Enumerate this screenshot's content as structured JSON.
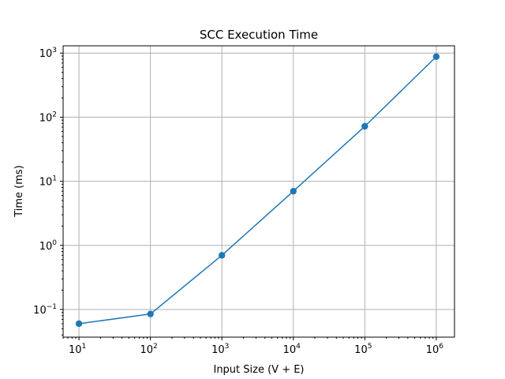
{
  "chart_data": {
    "type": "line",
    "title": "SCC Execution Time",
    "xlabel": "Input Size (V + E)",
    "ylabel": "Time (ms)",
    "xscale": "log",
    "yscale": "log",
    "xlim": [
      6,
      1800000
    ],
    "ylim": [
      0.037,
      1300
    ],
    "grid": true,
    "x_ticks": [
      {
        "base": "10",
        "exp": "1",
        "value": 10
      },
      {
        "base": "10",
        "exp": "2",
        "value": 100
      },
      {
        "base": "10",
        "exp": "3",
        "value": 1000
      },
      {
        "base": "10",
        "exp": "4",
        "value": 10000
      },
      {
        "base": "10",
        "exp": "5",
        "value": 100000
      },
      {
        "base": "10",
        "exp": "6",
        "value": 1000000
      }
    ],
    "y_ticks": [
      {
        "base": "10",
        "exp": "−1",
        "value": 0.1
      },
      {
        "base": "10",
        "exp": "0",
        "value": 1
      },
      {
        "base": "10",
        "exp": "1",
        "value": 10
      },
      {
        "base": "10",
        "exp": "2",
        "value": 100
      },
      {
        "base": "10",
        "exp": "3",
        "value": 1000
      }
    ],
    "series": [
      {
        "color": "#1f77b4",
        "marker": "circle",
        "x": [
          10,
          100,
          1000,
          10000,
          100000,
          1000000
        ],
        "y": [
          0.06,
          0.085,
          0.7,
          7,
          72,
          880
        ]
      }
    ]
  }
}
